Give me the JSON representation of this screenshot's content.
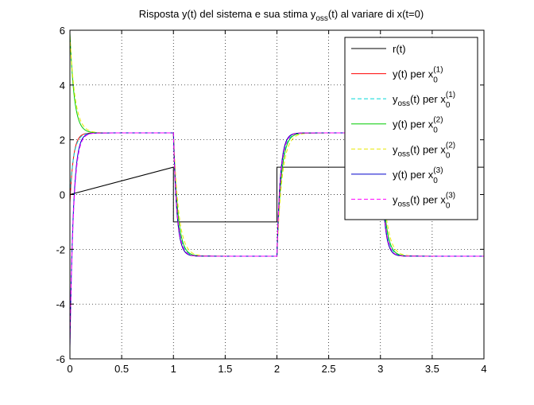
{
  "chart_data": {
    "type": "line",
    "title": {
      "pre": "Risposta y(t) del sistema e sua stima y",
      "sub": "oss",
      "post": "(t) al variare di x(t=0)"
    },
    "xlabel": "",
    "ylabel": "",
    "xlim": [
      0,
      4
    ],
    "ylim": [
      -6,
      6
    ],
    "x_ticks": [
      0,
      0.5,
      1,
      1.5,
      2,
      2.5,
      3,
      3.5,
      4
    ],
    "x_tick_labels": [
      "0",
      "0.5",
      "1",
      "1.5",
      "2",
      "2.5",
      "3",
      "3.5",
      "4"
    ],
    "y_ticks": [
      -6,
      -4,
      -2,
      0,
      2,
      4,
      6
    ],
    "y_tick_labels": [
      "-6",
      "-4",
      "-2",
      "0",
      "2",
      "4",
      "6"
    ],
    "grid": true,
    "legend_position": "top-right",
    "steady_state": 2.25,
    "series": [
      {
        "name": "r(t)",
        "kind": "reference",
        "color": "#000000",
        "dash": "solid",
        "x": [
          0,
          1,
          1,
          2,
          2,
          3,
          3,
          4
        ],
        "y": [
          0,
          1,
          -1,
          -1,
          1,
          1,
          1,
          1
        ]
      },
      {
        "name": "y(t) per x0(1)",
        "kind": "response",
        "color": "#ff0000",
        "dash": "solid",
        "y0": -0.3,
        "rate": 30
      },
      {
        "name": "yoss(t) per x0(1)",
        "kind": "response",
        "color": "#00d8d8",
        "dash": "dashed",
        "y0": 0.0,
        "rate": 26
      },
      {
        "name": "y(t) per x0(2)",
        "kind": "response",
        "color": "#00cc00",
        "dash": "solid",
        "y0": 5.9,
        "rate": 24
      },
      {
        "name": "yoss(t) per x0(2)",
        "kind": "response",
        "color": "#e8e800",
        "dash": "dashed",
        "y0": 5.8,
        "rate": 20
      },
      {
        "name": "y(t) per x0(3)",
        "kind": "response",
        "color": "#0000cc",
        "dash": "solid",
        "y0": -5.6,
        "rate": 30
      },
      {
        "name": "yoss(t) per x0(3)",
        "kind": "response",
        "color": "#ff00ff",
        "dash": "dashed",
        "y0": -5.5,
        "rate": 28
      }
    ],
    "legend": [
      {
        "main": "r(t)",
        "sub": "",
        "sup": ""
      },
      {
        "main": "y(t) per x",
        "sub": "0",
        "sup": "(1)"
      },
      {
        "main": "y",
        "oss": "oss",
        "mid": "(t) per x",
        "sub": "0",
        "sup": "(1)"
      },
      {
        "main": "y(t) per x",
        "sub": "0",
        "sup": "(2)"
      },
      {
        "main": "y",
        "oss": "oss",
        "mid": "(t) per x",
        "sub": "0",
        "sup": "(2)"
      },
      {
        "main": "y(t) per x",
        "sub": "0",
        "sup": "(3)"
      },
      {
        "main": "y",
        "oss": "oss",
        "mid": "(t) per x",
        "sub": "0",
        "sup": "(3)"
      }
    ]
  }
}
